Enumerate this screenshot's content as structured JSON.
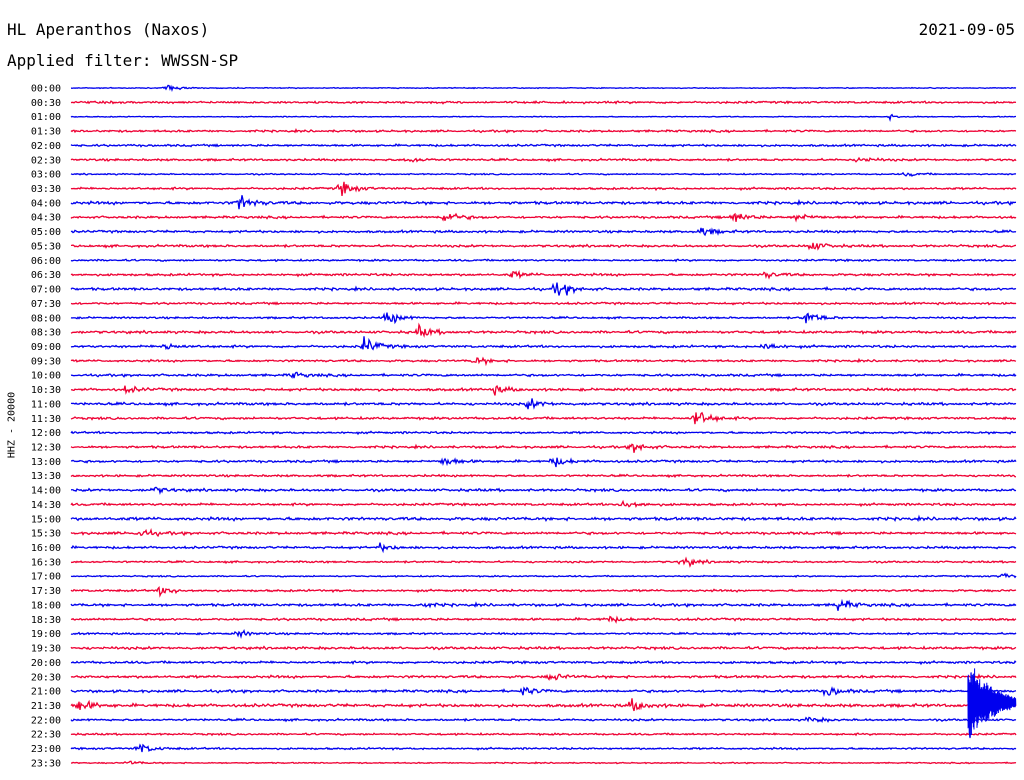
{
  "header": {
    "station": "HL Aperanthos (Naxos)",
    "filter": "Applied filter: WWSSN-SP",
    "date": "2021-09-05"
  },
  "channel": "HHZ - 20000",
  "colors": {
    "even_rows": "#0000ee",
    "odd_rows": "#ee0033"
  },
  "chart_data": {
    "type": "line",
    "title": "HL Aperanthos (Naxos)",
    "subtitle": "Applied filter: WWSSN-SP",
    "ylabel": "HHZ - 20000",
    "xlabel": "",
    "row_labels": [
      "00:00",
      "00:30",
      "01:00",
      "01:30",
      "02:00",
      "02:30",
      "03:00",
      "03:30",
      "04:00",
      "04:30",
      "05:00",
      "05:30",
      "06:00",
      "06:30",
      "07:00",
      "07:30",
      "08:00",
      "08:30",
      "09:00",
      "09:30",
      "10:00",
      "10:30",
      "11:00",
      "11:30",
      "12:00",
      "12:30",
      "13:00",
      "13:30",
      "14:00",
      "14:30",
      "15:00",
      "15:30",
      "16:00",
      "16:30",
      "17:00",
      "17:30",
      "18:00",
      "18:30",
      "19:00",
      "19:30",
      "20:00",
      "20:30",
      "21:00",
      "21:30",
      "22:00",
      "22:30",
      "23:00",
      "23:30"
    ],
    "row_minutes": 30,
    "x_range_minutes": [
      0,
      30
    ],
    "noise_level": [
      0.4,
      0.9,
      0.4,
      0.9,
      0.9,
      0.9,
      0.6,
      0.9,
      1.2,
      1.0,
      1.0,
      1.0,
      0.8,
      1.0,
      1.1,
      0.9,
      0.8,
      1.1,
      1.0,
      0.9,
      1.0,
      1.1,
      1.1,
      1.0,
      0.9,
      1.0,
      1.0,
      0.9,
      1.1,
      1.0,
      1.3,
      1.1,
      1.0,
      0.8,
      0.6,
      0.9,
      1.1,
      1.0,
      0.8,
      1.1,
      1.0,
      1.1,
      1.1,
      1.3,
      0.9,
      0.8,
      0.8,
      0.5
    ],
    "events": [
      {
        "row": 0,
        "minute": 3.0,
        "amplitude": 3
      },
      {
        "row": 2,
        "minute": 26.0,
        "amplitude": 2
      },
      {
        "row": 5,
        "minute": 10.7,
        "amplitude": 3
      },
      {
        "row": 5,
        "minute": 25.0,
        "amplitude": 3
      },
      {
        "row": 6,
        "minute": 26.5,
        "amplitude": 2
      },
      {
        "row": 7,
        "minute": 8.5,
        "amplitude": 8
      },
      {
        "row": 8,
        "minute": 5.3,
        "amplitude": 8
      },
      {
        "row": 9,
        "minute": 11.8,
        "amplitude": 7
      },
      {
        "row": 9,
        "minute": 21.0,
        "amplitude": 6
      },
      {
        "row": 9,
        "minute": 23.0,
        "amplitude": 4
      },
      {
        "row": 10,
        "minute": 20.0,
        "amplitude": 4
      },
      {
        "row": 11,
        "minute": 23.4,
        "amplitude": 6
      },
      {
        "row": 13,
        "minute": 14.0,
        "amplitude": 3
      },
      {
        "row": 13,
        "minute": 22.0,
        "amplitude": 3
      },
      {
        "row": 14,
        "minute": 15.4,
        "amplitude": 8
      },
      {
        "row": 16,
        "minute": 10.0,
        "amplitude": 7
      },
      {
        "row": 16,
        "minute": 23.3,
        "amplitude": 7
      },
      {
        "row": 17,
        "minute": 11.0,
        "amplitude": 6
      },
      {
        "row": 18,
        "minute": 2.9,
        "amplitude": 4
      },
      {
        "row": 18,
        "minute": 9.3,
        "amplitude": 8
      },
      {
        "row": 18,
        "minute": 22.0,
        "amplitude": 4
      },
      {
        "row": 19,
        "minute": 12.8,
        "amplitude": 4
      },
      {
        "row": 20,
        "minute": 7.0,
        "amplitude": 3
      },
      {
        "row": 21,
        "minute": 1.7,
        "amplitude": 3
      },
      {
        "row": 21,
        "minute": 13.4,
        "amplitude": 4
      },
      {
        "row": 22,
        "minute": 14.5,
        "amplitude": 5
      },
      {
        "row": 23,
        "minute": 19.8,
        "amplitude": 10
      },
      {
        "row": 25,
        "minute": 17.8,
        "amplitude": 5
      },
      {
        "row": 26,
        "minute": 11.8,
        "amplitude": 5
      },
      {
        "row": 26,
        "minute": 15.3,
        "amplitude": 5
      },
      {
        "row": 28,
        "minute": 2.6,
        "amplitude": 3
      },
      {
        "row": 29,
        "minute": 17.5,
        "amplitude": 6
      },
      {
        "row": 31,
        "minute": 2.1,
        "amplitude": 5
      },
      {
        "row": 32,
        "minute": 9.8,
        "amplitude": 3
      },
      {
        "row": 33,
        "minute": 19.4,
        "amplitude": 5
      },
      {
        "row": 34,
        "minute": 29.5,
        "amplitude": 3
      },
      {
        "row": 35,
        "minute": 2.8,
        "amplitude": 5
      },
      {
        "row": 36,
        "minute": 24.3,
        "amplitude": 6
      },
      {
        "row": 36,
        "minute": 11.0,
        "amplitude": 3
      },
      {
        "row": 37,
        "minute": 17.0,
        "amplitude": 3
      },
      {
        "row": 38,
        "minute": 5.3,
        "amplitude": 3
      },
      {
        "row": 41,
        "minute": 15.2,
        "amplitude": 4
      },
      {
        "row": 42,
        "minute": 24.0,
        "amplitude": 5
      },
      {
        "row": 42,
        "minute": 14.3,
        "amplitude": 4
      },
      {
        "row": 43,
        "minute": 17.8,
        "amplitude": 6
      },
      {
        "row": 43,
        "minute": 0.2,
        "amplitude": 6
      },
      {
        "row": 44,
        "minute": 23.4,
        "amplitude": 3
      },
      {
        "row": 46,
        "minute": 2.1,
        "amplitude": 6
      },
      {
        "row": 47,
        "minute": 1.8,
        "amplitude": 2
      }
    ],
    "large_event": {
      "start_row": 40,
      "end_row": 45,
      "minute": 28.6,
      "amplitude": 45
    }
  }
}
